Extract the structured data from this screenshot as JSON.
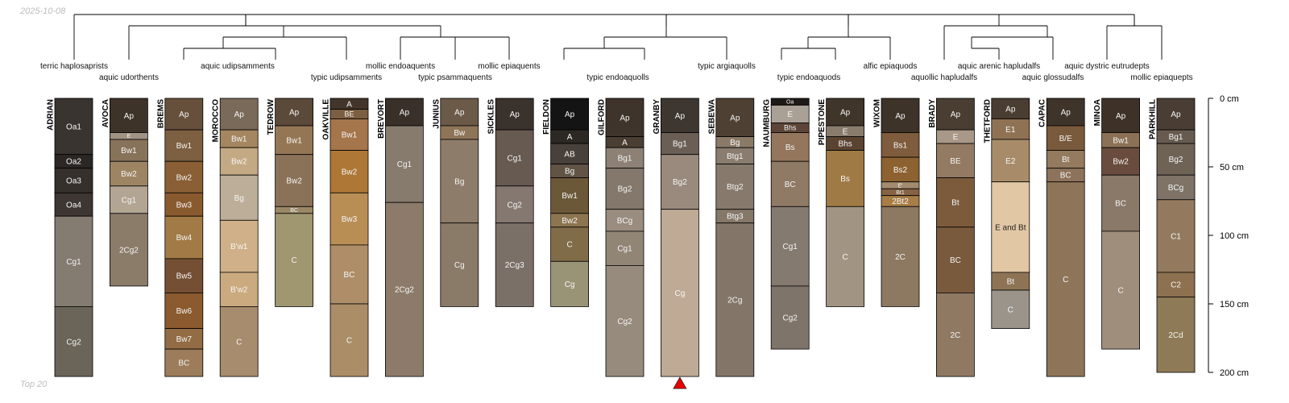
{
  "page": {
    "date_label": "2025-10-08",
    "footer_label": "Top 20"
  },
  "chart_data": {
    "type": "soil-profile-sketch",
    "depth_unit": "cm",
    "depth_range": [
      0,
      200
    ],
    "depth_ticks": [
      0,
      50,
      100,
      150,
      200
    ],
    "depth_tick_labels": [
      "0 cm",
      "50 cm",
      "100 cm",
      "150 cm",
      "200 cm"
    ],
    "profiles": [
      {
        "name": "ADRIAN",
        "taxonomy": "terric haplosaprists",
        "horizons": [
          {
            "name": "Oa1",
            "top": 0,
            "bottom": 41,
            "color": "#3a3430"
          },
          {
            "name": "Oa2",
            "top": 41,
            "bottom": 51,
            "color": "#2b2724"
          },
          {
            "name": "Oa3",
            "top": 51,
            "bottom": 69,
            "color": "#36302c"
          },
          {
            "name": "Oa4",
            "top": 69,
            "bottom": 86,
            "color": "#3d3632"
          },
          {
            "name": "Cg1",
            "top": 86,
            "bottom": 152,
            "color": "#847b71"
          },
          {
            "name": "Cg2",
            "top": 152,
            "bottom": 203,
            "color": "#6a6459"
          }
        ]
      },
      {
        "name": "AVOCA",
        "taxonomy": "aquic udorthents",
        "horizons": [
          {
            "name": "Ap",
            "top": 0,
            "bottom": 25,
            "color": "#3e3329"
          },
          {
            "name": "E",
            "top": 25,
            "bottom": 30,
            "color": "#a09383"
          },
          {
            "name": "Bw1",
            "top": 30,
            "bottom": 46,
            "color": "#87725a"
          },
          {
            "name": "Bw2",
            "top": 46,
            "bottom": 64,
            "color": "#9d8564"
          },
          {
            "name": "Cg1",
            "top": 64,
            "bottom": 84,
            "color": "#b3a593"
          },
          {
            "name": "2Cg2",
            "top": 84,
            "bottom": 137,
            "color": "#8b7b69"
          }
        ]
      },
      {
        "name": "BREMS",
        "taxonomy": "",
        "horizons": [
          {
            "name": "Ap",
            "top": 0,
            "bottom": 23,
            "color": "#66503c"
          },
          {
            "name": "Bw1",
            "top": 23,
            "bottom": 46,
            "color": "#7d5f41"
          },
          {
            "name": "Bw2",
            "top": 46,
            "bottom": 69,
            "color": "#8a5f35"
          },
          {
            "name": "Bw3",
            "top": 69,
            "bottom": 86,
            "color": "#8a5a2f"
          },
          {
            "name": "Bw4",
            "top": 86,
            "bottom": 117,
            "color": "#a27a45"
          },
          {
            "name": "Bw5",
            "top": 117,
            "bottom": 142,
            "color": "#744f33"
          },
          {
            "name": "Bw6",
            "top": 142,
            "bottom": 168,
            "color": "#8b5a2e"
          },
          {
            "name": "Bw7",
            "top": 168,
            "bottom": 183,
            "color": "#936c45"
          },
          {
            "name": "BC",
            "top": 183,
            "bottom": 203,
            "color": "#9c7c5a"
          }
        ]
      },
      {
        "name": "MOROCCO",
        "taxonomy": "aquic udipsamments",
        "horizons": [
          {
            "name": "Ap",
            "top": 0,
            "bottom": 23,
            "color": "#7a6a5a"
          },
          {
            "name": "Bw1",
            "top": 23,
            "bottom": 36,
            "color": "#a48660"
          },
          {
            "name": "Bw2",
            "top": 36,
            "bottom": 56,
            "color": "#c4aa84"
          },
          {
            "name": "Bg",
            "top": 56,
            "bottom": 89,
            "color": "#bcae98"
          },
          {
            "name": "B'w1",
            "top": 89,
            "bottom": 127,
            "color": "#cfb088"
          },
          {
            "name": "B'w2",
            "top": 127,
            "bottom": 152,
            "color": "#caaa7e"
          },
          {
            "name": "C",
            "top": 152,
            "bottom": 203,
            "color": "#a78c6d"
          }
        ]
      },
      {
        "name": "TEDROW",
        "taxonomy": "",
        "horizons": [
          {
            "name": "Ap",
            "top": 0,
            "bottom": 20,
            "color": "#5b4a3a"
          },
          {
            "name": "Bw1",
            "top": 20,
            "bottom": 41,
            "color": "#957654"
          },
          {
            "name": "Bw2",
            "top": 41,
            "bottom": 79,
            "color": "#8a7258"
          },
          {
            "name": "BC",
            "top": 79,
            "bottom": 84,
            "color": "#998766"
          },
          {
            "name": "C",
            "top": 84,
            "bottom": 152,
            "color": "#a09670"
          }
        ]
      },
      {
        "name": "OAKVILLE",
        "taxonomy": "typic udipsamments",
        "horizons": [
          {
            "name": "A",
            "top": 0,
            "bottom": 8,
            "color": "#43352a"
          },
          {
            "name": "BE",
            "top": 8,
            "bottom": 15,
            "color": "#7c5e41"
          },
          {
            "name": "Bw1",
            "top": 15,
            "bottom": 38,
            "color": "#a5754b"
          },
          {
            "name": "Bw2",
            "top": 38,
            "bottom": 69,
            "color": "#ae7736"
          },
          {
            "name": "Bw3",
            "top": 69,
            "bottom": 107,
            "color": "#b98e55"
          },
          {
            "name": "BC",
            "top": 107,
            "bottom": 150,
            "color": "#ae8e68"
          },
          {
            "name": "C",
            "top": 150,
            "bottom": 203,
            "color": "#ab8d68"
          }
        ]
      },
      {
        "name": "BREVORT",
        "taxonomy": "mollic endoaquents",
        "horizons": [
          {
            "name": "Ap",
            "top": 0,
            "bottom": 20,
            "color": "#3a302a"
          },
          {
            "name": "Cg1",
            "top": 20,
            "bottom": 76,
            "color": "#877b6e"
          },
          {
            "name": "2Cg2",
            "top": 76,
            "bottom": 203,
            "color": "#8c7b6a"
          }
        ]
      },
      {
        "name": "JUNIUS",
        "taxonomy": "typic psammaquents",
        "horizons": [
          {
            "name": "Ap",
            "top": 0,
            "bottom": 20,
            "color": "#6b5a48"
          },
          {
            "name": "Bw",
            "top": 20,
            "bottom": 30,
            "color": "#8f7558"
          },
          {
            "name": "Bg",
            "top": 30,
            "bottom": 91,
            "color": "#8e7c6a"
          },
          {
            "name": "Cg",
            "top": 91,
            "bottom": 152,
            "color": "#8a7a68"
          }
        ]
      },
      {
        "name": "SICKLES",
        "taxonomy": "mollic epiaquents",
        "horizons": [
          {
            "name": "Ap",
            "top": 0,
            "bottom": 23,
            "color": "#3a322d"
          },
          {
            "name": "Cg1",
            "top": 23,
            "bottom": 64,
            "color": "#665a51"
          },
          {
            "name": "Cg2",
            "top": 64,
            "bottom": 91,
            "color": "#857870"
          },
          {
            "name": "2Cg3",
            "top": 91,
            "bottom": 152,
            "color": "#7b7068"
          }
        ]
      },
      {
        "name": "FIELDON",
        "taxonomy": "",
        "horizons": [
          {
            "name": "Ap",
            "top": 0,
            "bottom": 23,
            "color": "#141414"
          },
          {
            "name": "A",
            "top": 23,
            "bottom": 33,
            "color": "#2c2824"
          },
          {
            "name": "AB",
            "top": 33,
            "bottom": 48,
            "color": "#48403a"
          },
          {
            "name": "Bg",
            "top": 48,
            "bottom": 58,
            "color": "#615445"
          },
          {
            "name": "Bw1",
            "top": 58,
            "bottom": 84,
            "color": "#6b5838"
          },
          {
            "name": "Bw2",
            "top": 84,
            "bottom": 94,
            "color": "#8c7550"
          },
          {
            "name": "C",
            "top": 94,
            "bottom": 119,
            "color": "#806c48"
          },
          {
            "name": "Cg",
            "top": 119,
            "bottom": 152,
            "color": "#9a9477"
          }
        ]
      },
      {
        "name": "GILFORD",
        "taxonomy": "typic endoaquolls",
        "horizons": [
          {
            "name": "Ap",
            "top": 0,
            "bottom": 28,
            "color": "#3f342b"
          },
          {
            "name": "A",
            "top": 28,
            "bottom": 36,
            "color": "#4b3e32"
          },
          {
            "name": "Bg1",
            "top": 36,
            "bottom": 51,
            "color": "#8c8174"
          },
          {
            "name": "Bg2",
            "top": 51,
            "bottom": 81,
            "color": "#83786b"
          },
          {
            "name": "BCg",
            "top": 81,
            "bottom": 97,
            "color": "#9a8c7f"
          },
          {
            "name": "Cg1",
            "top": 97,
            "bottom": 122,
            "color": "#918576"
          },
          {
            "name": "Cg2",
            "top": 122,
            "bottom": 203,
            "color": "#978b7e"
          }
        ]
      },
      {
        "name": "GRANBY",
        "taxonomy": "",
        "truncated": true,
        "horizons": [
          {
            "name": "Ap",
            "top": 0,
            "bottom": 25,
            "color": "#3e3731"
          },
          {
            "name": "Bg1",
            "top": 25,
            "bottom": 41,
            "color": "#6b5f55"
          },
          {
            "name": "Bg2",
            "top": 41,
            "bottom": 81,
            "color": "#998a7d"
          },
          {
            "name": "Cg",
            "top": 81,
            "bottom": 203,
            "color": "#bfaa95"
          }
        ]
      },
      {
        "name": "SEBEWA",
        "taxonomy": "typic argiaquolls",
        "horizons": [
          {
            "name": "Ap",
            "top": 0,
            "bottom": 28,
            "color": "#4e4033"
          },
          {
            "name": "Bg",
            "top": 28,
            "bottom": 36,
            "color": "#8b7a68"
          },
          {
            "name": "Btg1",
            "top": 36,
            "bottom": 48,
            "color": "#8a7c6f"
          },
          {
            "name": "Btg2",
            "top": 48,
            "bottom": 81,
            "color": "#877a6d"
          },
          {
            "name": "Btg3",
            "top": 81,
            "bottom": 91,
            "color": "#857869"
          },
          {
            "name": "2Cg",
            "top": 91,
            "bottom": 203,
            "color": "#837668"
          }
        ]
      },
      {
        "name": "NAUMBURG",
        "taxonomy": "typic endoaquods",
        "horizons": [
          {
            "name": "Oa",
            "top": 0,
            "bottom": 5,
            "color": "#1e1a18"
          },
          {
            "name": "E",
            "top": 5,
            "bottom": 18,
            "color": "#aaa196"
          },
          {
            "name": "Bhs",
            "top": 18,
            "bottom": 25,
            "color": "#5c4536"
          },
          {
            "name": "Bs",
            "top": 25,
            "bottom": 46,
            "color": "#93765c"
          },
          {
            "name": "BC",
            "top": 46,
            "bottom": 79,
            "color": "#8f7a66"
          },
          {
            "name": "Cg1",
            "top": 79,
            "bottom": 137,
            "color": "#857a70"
          },
          {
            "name": "Cg2",
            "top": 137,
            "bottom": 183,
            "color": "#7e746a"
          }
        ]
      },
      {
        "name": "PIPESTONE",
        "taxonomy": "",
        "horizons": [
          {
            "name": "Ap",
            "top": 0,
            "bottom": 20,
            "color": "#403529"
          },
          {
            "name": "E",
            "top": 20,
            "bottom": 28,
            "color": "#8a7c6c"
          },
          {
            "name": "Bhs",
            "top": 28,
            "bottom": 38,
            "color": "#5b4332"
          },
          {
            "name": "Bs",
            "top": 38,
            "bottom": 79,
            "color": "#a07a45"
          },
          {
            "name": "C",
            "top": 79,
            "bottom": 152,
            "color": "#a29482"
          }
        ]
      },
      {
        "name": "WIXOM",
        "taxonomy": "alfic epiaquods",
        "horizons": [
          {
            "name": "Ap",
            "top": 0,
            "bottom": 25,
            "color": "#3e3329"
          },
          {
            "name": "Bs1",
            "top": 25,
            "bottom": 43,
            "color": "#7e5c3d"
          },
          {
            "name": "Bs2",
            "top": 43,
            "bottom": 61,
            "color": "#8d6230"
          },
          {
            "name": "E'",
            "top": 61,
            "bottom": 66,
            "color": "#a38b70"
          },
          {
            "name": "Bt1",
            "top": 66,
            "bottom": 71,
            "color": "#856343"
          },
          {
            "name": "2Bt2",
            "top": 71,
            "bottom": 79,
            "color": "#a87d46"
          },
          {
            "name": "2C",
            "top": 79,
            "bottom": 152,
            "color": "#8d7861"
          }
        ]
      },
      {
        "name": "BRADY",
        "taxonomy": "aquollic hapludalfs",
        "horizons": [
          {
            "name": "Ap",
            "top": 0,
            "bottom": 23,
            "color": "#4a3e33"
          },
          {
            "name": "E",
            "top": 23,
            "bottom": 33,
            "color": "#a99787"
          },
          {
            "name": "BE",
            "top": 33,
            "bottom": 58,
            "color": "#937a63"
          },
          {
            "name": "Bt",
            "top": 58,
            "bottom": 94,
            "color": "#7c5b3d"
          },
          {
            "name": "BC",
            "top": 94,
            "bottom": 142,
            "color": "#7a5a3d"
          },
          {
            "name": "2C",
            "top": 142,
            "bottom": 203,
            "color": "#8f7962"
          }
        ]
      },
      {
        "name": "THETFORD",
        "taxonomy": "aquic arenic hapludalfs",
        "horizons": [
          {
            "name": "Ap",
            "top": 0,
            "bottom": 15,
            "color": "#4a3d31"
          },
          {
            "name": "E1",
            "top": 15,
            "bottom": 30,
            "color": "#8f7254"
          },
          {
            "name": "E2",
            "top": 30,
            "bottom": 61,
            "color": "#a88c6a"
          },
          {
            "name": "E and Bt",
            "top": 61,
            "bottom": 127,
            "color": "#e2c7a5"
          },
          {
            "name": "Bt",
            "top": 127,
            "bottom": 140,
            "color": "#8e7455"
          },
          {
            "name": "C",
            "top": 140,
            "bottom": 168,
            "color": "#9a948b"
          }
        ]
      },
      {
        "name": "CAPAC",
        "taxonomy": "aquic glossudalfs",
        "horizons": [
          {
            "name": "Ap",
            "top": 0,
            "bottom": 20,
            "color": "#3e342a"
          },
          {
            "name": "B/E",
            "top": 20,
            "bottom": 38,
            "color": "#7a5a3c"
          },
          {
            "name": "Bt",
            "top": 38,
            "bottom": 51,
            "color": "#947a5e"
          },
          {
            "name": "BC",
            "top": 51,
            "bottom": 61,
            "color": "#8d735b"
          },
          {
            "name": "C",
            "top": 61,
            "bottom": 203,
            "color": "#8e7559"
          }
        ]
      },
      {
        "name": "MINOA",
        "taxonomy": "aquic dystric eutrudepts",
        "horizons": [
          {
            "name": "Ap",
            "top": 0,
            "bottom": 25,
            "color": "#3e3228"
          },
          {
            "name": "Bw1",
            "top": 25,
            "bottom": 36,
            "color": "#8b7156"
          },
          {
            "name": "Bw2",
            "top": 36,
            "bottom": 56,
            "color": "#6a4c3e"
          },
          {
            "name": "BC",
            "top": 56,
            "bottom": 97,
            "color": "#8a7868"
          },
          {
            "name": "C",
            "top": 97,
            "bottom": 183,
            "color": "#9f8e7c"
          }
        ]
      },
      {
        "name": "PARKHILL",
        "taxonomy": "mollic epiaquepts",
        "horizons": [
          {
            "name": "Ap",
            "top": 0,
            "bottom": 23,
            "color": "#4a3e34"
          },
          {
            "name": "Bg1",
            "top": 23,
            "bottom": 33,
            "color": "#675b4f"
          },
          {
            "name": "Bg2",
            "top": 33,
            "bottom": 56,
            "color": "#6f6356"
          },
          {
            "name": "BCg",
            "top": 56,
            "bottom": 74,
            "color": "#7e7366"
          },
          {
            "name": "C1",
            "top": 74,
            "bottom": 127,
            "color": "#937a5e"
          },
          {
            "name": "C2",
            "top": 127,
            "bottom": 145,
            "color": "#8e7150"
          },
          {
            "name": "2Cd",
            "top": 145,
            "bottom": 200,
            "color": "#8e7a56"
          }
        ]
      }
    ]
  }
}
